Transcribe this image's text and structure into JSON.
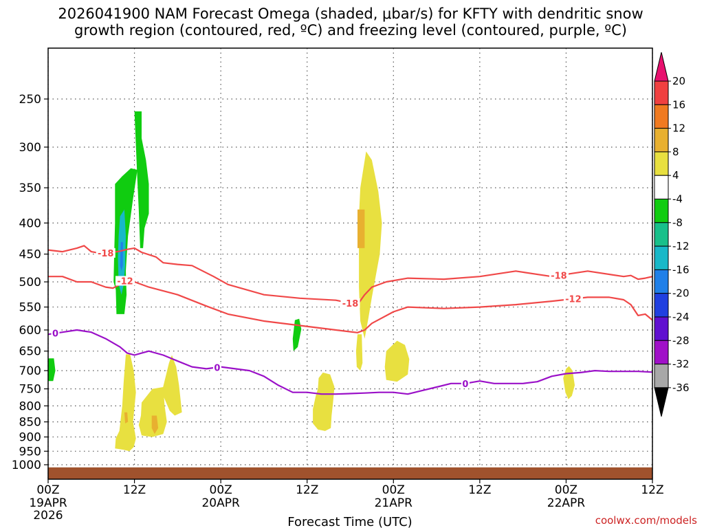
{
  "page": {
    "title_line1": "2026041900 NAM Forecast Omega (shaded, μbar/s) for KFTY with dendritic snow",
    "title_line2": "growth region (contoured, red, ºC) and freezing level (contoured, purple, ºC)",
    "credit": "coolwx.com/models"
  },
  "chart_data": {
    "type": "heatmap",
    "title": "2026041900 NAM Forecast Omega (shaded, μbar/s) for KFTY with dendritic snow growth region (contoured, red, ºC) and freezing level (contoured, purple, ºC)",
    "xlabel": "Forecast Time (UTC)",
    "ylabel": "",
    "x_units": "forecast hour",
    "x_range": [
      0,
      84
    ],
    "y_units": "hPa",
    "y_range": [
      1050,
      200
    ],
    "y_ticks": [
      "250",
      "300",
      "350",
      "400",
      "450",
      "500",
      "550",
      "600",
      "650",
      "700",
      "750",
      "800",
      "850",
      "900",
      "950",
      "1000"
    ],
    "x_ticks": [
      {
        "hour": 0,
        "label": "00Z",
        "sub": "19APR",
        "year": "2026"
      },
      {
        "hour": 12,
        "label": "12Z",
        "sub": "",
        "year": ""
      },
      {
        "hour": 24,
        "label": "00Z",
        "sub": "20APR",
        "year": ""
      },
      {
        "hour": 36,
        "label": "12Z",
        "sub": "",
        "year": ""
      },
      {
        "hour": 48,
        "label": "00Z",
        "sub": "21APR",
        "year": ""
      },
      {
        "hour": 60,
        "label": "12Z",
        "sub": "",
        "year": ""
      },
      {
        "hour": 72,
        "label": "00Z",
        "sub": "22APR",
        "year": ""
      },
      {
        "hour": 84,
        "label": "12Z",
        "sub": "",
        "year": ""
      }
    ],
    "grid": true,
    "colorbar": {
      "labels": [
        "20",
        "16",
        "12",
        "8",
        "4",
        "-4",
        "-8",
        "-12",
        "-16",
        "-20",
        "-24",
        "-28",
        "-32",
        "-36"
      ],
      "colors": [
        "#e8106e",
        "#f04040",
        "#f07a20",
        "#e8b030",
        "#e8e040",
        "#ffffff",
        "#10cc10",
        "#18c08a",
        "#18b8c8",
        "#2080e8",
        "#2040e0",
        "#6010d0",
        "#a010c8",
        "#a8a8a8",
        "#000000"
      ]
    },
    "surface_color": "#a0522d",
    "surface_pressure": 1010,
    "omega_shapes": [
      {
        "name": "green-top-plume",
        "value": -6,
        "points": [
          [
            12.0,
            262
          ],
          [
            13.0,
            262
          ],
          [
            13.0,
            290
          ],
          [
            13.6,
            315
          ],
          [
            14.0,
            345
          ],
          [
            14.0,
            386
          ],
          [
            13.4,
            408
          ],
          [
            13.2,
            440
          ],
          [
            12.8,
            440
          ],
          [
            12.6,
            380
          ],
          [
            12.4,
            340
          ]
        ]
      },
      {
        "name": "green-column",
        "value": -6,
        "points": [
          [
            9.3,
            345
          ],
          [
            10.3,
            335
          ],
          [
            11.5,
            325
          ],
          [
            12.4,
            327
          ],
          [
            11.8,
            365
          ],
          [
            11.1,
            420
          ],
          [
            10.8,
            480
          ],
          [
            10.9,
            525
          ],
          [
            10.6,
            565
          ],
          [
            9.5,
            565
          ],
          [
            9.4,
            515
          ],
          [
            9.1,
            500
          ],
          [
            9.2,
            440
          ],
          [
            9.3,
            400
          ]
        ]
      },
      {
        "name": "teal-core",
        "value": -12,
        "points": [
          [
            10.0,
            390
          ],
          [
            10.6,
            380
          ],
          [
            10.8,
            420
          ],
          [
            10.7,
            470
          ],
          [
            10.5,
            505
          ],
          [
            10.2,
            525
          ],
          [
            9.8,
            505
          ],
          [
            9.7,
            455
          ],
          [
            9.8,
            420
          ]
        ]
      },
      {
        "name": "blue-core",
        "value": -16,
        "points": [
          [
            10.1,
            430
          ],
          [
            10.4,
            430
          ],
          [
            10.4,
            470
          ],
          [
            10.2,
            480
          ],
          [
            10.0,
            470
          ]
        ]
      },
      {
        "name": "green-small-left",
        "value": -6,
        "points": [
          [
            0.0,
            668
          ],
          [
            0.8,
            668
          ],
          [
            1.0,
            700
          ],
          [
            0.7,
            728
          ],
          [
            0.0,
            728
          ]
        ]
      },
      {
        "name": "green-small-mid",
        "value": -6,
        "points": [
          [
            34.3,
            578
          ],
          [
            34.9,
            575
          ],
          [
            35.2,
            598
          ],
          [
            34.7,
            640
          ],
          [
            34.1,
            650
          ],
          [
            34.0,
            620
          ]
        ]
      },
      {
        "name": "yellow-col-left",
        "value": 5,
        "points": [
          [
            10.8,
            658
          ],
          [
            11.4,
            658
          ],
          [
            11.9,
            700
          ],
          [
            12.2,
            760
          ],
          [
            11.8,
            850
          ],
          [
            12.2,
            905
          ],
          [
            11.9,
            935
          ],
          [
            11.3,
            950
          ],
          [
            10.5,
            945
          ],
          [
            9.3,
            940
          ],
          [
            9.4,
            905
          ],
          [
            9.9,
            880
          ],
          [
            10.3,
            800
          ],
          [
            10.5,
            730
          ]
        ]
      },
      {
        "name": "yellow-mid-blob",
        "value": 5,
        "points": [
          [
            13.0,
            790
          ],
          [
            14.5,
            750
          ],
          [
            16.0,
            745
          ],
          [
            16.2,
            800
          ],
          [
            16.5,
            850
          ],
          [
            16.0,
            890
          ],
          [
            14.5,
            900
          ],
          [
            13.0,
            895
          ],
          [
            12.6,
            860
          ],
          [
            12.9,
            830
          ]
        ]
      },
      {
        "name": "yellow-right-blob",
        "value": 5,
        "points": [
          [
            15.8,
            760
          ],
          [
            16.8,
            680
          ],
          [
            17.2,
            660
          ],
          [
            17.8,
            690
          ],
          [
            18.2,
            740
          ],
          [
            18.6,
            820
          ],
          [
            17.6,
            830
          ],
          [
            16.9,
            815
          ]
        ]
      },
      {
        "name": "orange-spot-a",
        "value": 10,
        "points": [
          [
            10.6,
            820
          ],
          [
            11.0,
            820
          ],
          [
            11.1,
            850
          ],
          [
            10.7,
            855
          ]
        ]
      },
      {
        "name": "orange-spot-b",
        "value": 10,
        "points": [
          [
            14.4,
            830
          ],
          [
            15.1,
            830
          ],
          [
            15.3,
            870
          ],
          [
            14.8,
            890
          ],
          [
            14.4,
            870
          ]
        ]
      },
      {
        "name": "yellow-tall-column",
        "value": 5,
        "points": [
          [
            43.4,
            350
          ],
          [
            44.2,
            305
          ],
          [
            45.0,
            315
          ],
          [
            45.9,
            355
          ],
          [
            46.4,
            400
          ],
          [
            46.1,
            450
          ],
          [
            45.0,
            530
          ],
          [
            44.5,
            575
          ],
          [
            44.0,
            620
          ],
          [
            43.4,
            580
          ],
          [
            43.2,
            510
          ],
          [
            43.2,
            440
          ],
          [
            43.2,
            390
          ]
        ]
      },
      {
        "name": "orange-tall-core",
        "value": 10,
        "points": [
          [
            43.0,
            380
          ],
          [
            44.0,
            380
          ],
          [
            44.0,
            440
          ],
          [
            43.0,
            440
          ]
        ]
      },
      {
        "name": "yellow-small-under",
        "value": 5,
        "points": [
          [
            43.0,
            610
          ],
          [
            43.6,
            610
          ],
          [
            43.7,
            680
          ],
          [
            43.4,
            700
          ],
          [
            42.9,
            690
          ],
          [
            42.8,
            650
          ]
        ]
      },
      {
        "name": "yellow-blob-mid",
        "value": 5,
        "points": [
          [
            37.6,
            720
          ],
          [
            38.2,
            705
          ],
          [
            39.2,
            710
          ],
          [
            39.8,
            745
          ],
          [
            39.6,
            790
          ],
          [
            39.4,
            830
          ],
          [
            39.3,
            870
          ],
          [
            38.5,
            880
          ],
          [
            37.5,
            875
          ],
          [
            36.8,
            855
          ],
          [
            36.8,
            810
          ],
          [
            37.2,
            770
          ],
          [
            37.5,
            750
          ]
        ]
      },
      {
        "name": "yellow-blob-right",
        "value": 5,
        "points": [
          [
            47.0,
            650
          ],
          [
            48.5,
            625
          ],
          [
            49.6,
            635
          ],
          [
            50.2,
            670
          ],
          [
            50.0,
            710
          ],
          [
            48.5,
            730
          ],
          [
            47.0,
            725
          ],
          [
            46.8,
            690
          ]
        ]
      },
      {
        "name": "yellow-blob-far",
        "value": 5,
        "points": [
          [
            72.0,
            695
          ],
          [
            72.4,
            688
          ],
          [
            72.9,
            700
          ],
          [
            73.2,
            740
          ],
          [
            72.8,
            770
          ],
          [
            72.3,
            780
          ],
          [
            71.9,
            760
          ],
          [
            71.6,
            720
          ]
        ]
      }
    ],
    "contours": [
      {
        "name": "minus-18",
        "value": -18,
        "label": "-18",
        "color": "#f04848",
        "x": [
          0,
          2,
          4,
          5,
          6,
          7,
          8,
          9,
          10,
          11,
          12,
          13,
          15,
          16,
          18,
          20,
          23,
          25,
          30,
          35,
          40,
          42,
          43,
          44,
          45,
          47,
          50,
          55,
          60,
          65,
          70,
          75,
          80,
          81,
          82,
          83,
          84
        ],
        "y": [
          443,
          446,
          440,
          436,
          446,
          448,
          448,
          447,
          445,
          442,
          440,
          447,
          455,
          465,
          468,
          470,
          490,
          505,
          525,
          532,
          536,
          542,
          545,
          525,
          510,
          500,
          493,
          495,
          490,
          480,
          490,
          480,
          490,
          488,
          495,
          493,
          490
        ],
        "labels_at": [
          8,
          42,
          71
        ]
      },
      {
        "name": "minus-12",
        "value": -12,
        "label": "-12",
        "color": "#f04848",
        "x": [
          0,
          2,
          4,
          6,
          8,
          9,
          10,
          11,
          12,
          14,
          18,
          22,
          25,
          30,
          35,
          40,
          43,
          44,
          45,
          48,
          50,
          55,
          60,
          65,
          70,
          75,
          78,
          80,
          81,
          82,
          83,
          84
        ],
        "y": [
          490,
          490,
          500,
          500,
          510,
          512,
          505,
          495,
          500,
          510,
          525,
          548,
          565,
          580,
          590,
          600,
          606,
          600,
          585,
          560,
          550,
          553,
          550,
          545,
          538,
          530,
          530,
          535,
          545,
          568,
          565,
          578
        ],
        "labels_at": [
          10.7,
          73
        ]
      },
      {
        "name": "zero",
        "value": 0,
        "label": "0",
        "color": "#9a10c8",
        "x": [
          0,
          2,
          4,
          6,
          8,
          10,
          11,
          12,
          13,
          14,
          16,
          18,
          20,
          22,
          24,
          26,
          28,
          30,
          32,
          34,
          36,
          38,
          40,
          44,
          46,
          48,
          50,
          52,
          54,
          56,
          58,
          60,
          62,
          64,
          66,
          68,
          70,
          72,
          74,
          76,
          78,
          80,
          82,
          84
        ],
        "y": [
          610,
          605,
          600,
          605,
          620,
          640,
          655,
          660,
          655,
          650,
          660,
          675,
          690,
          695,
          690,
          695,
          700,
          715,
          740,
          760,
          760,
          765,
          765,
          762,
          760,
          760,
          765,
          755,
          745,
          735,
          735,
          728,
          735,
          735,
          735,
          730,
          715,
          708,
          705,
          700,
          702,
          702,
          702,
          704
        ],
        "labels_at": [
          1,
          23.5,
          58
        ]
      }
    ]
  },
  "colors": {
    "bar_top_arrow": "#e8106e",
    "frame": "#000000"
  }
}
